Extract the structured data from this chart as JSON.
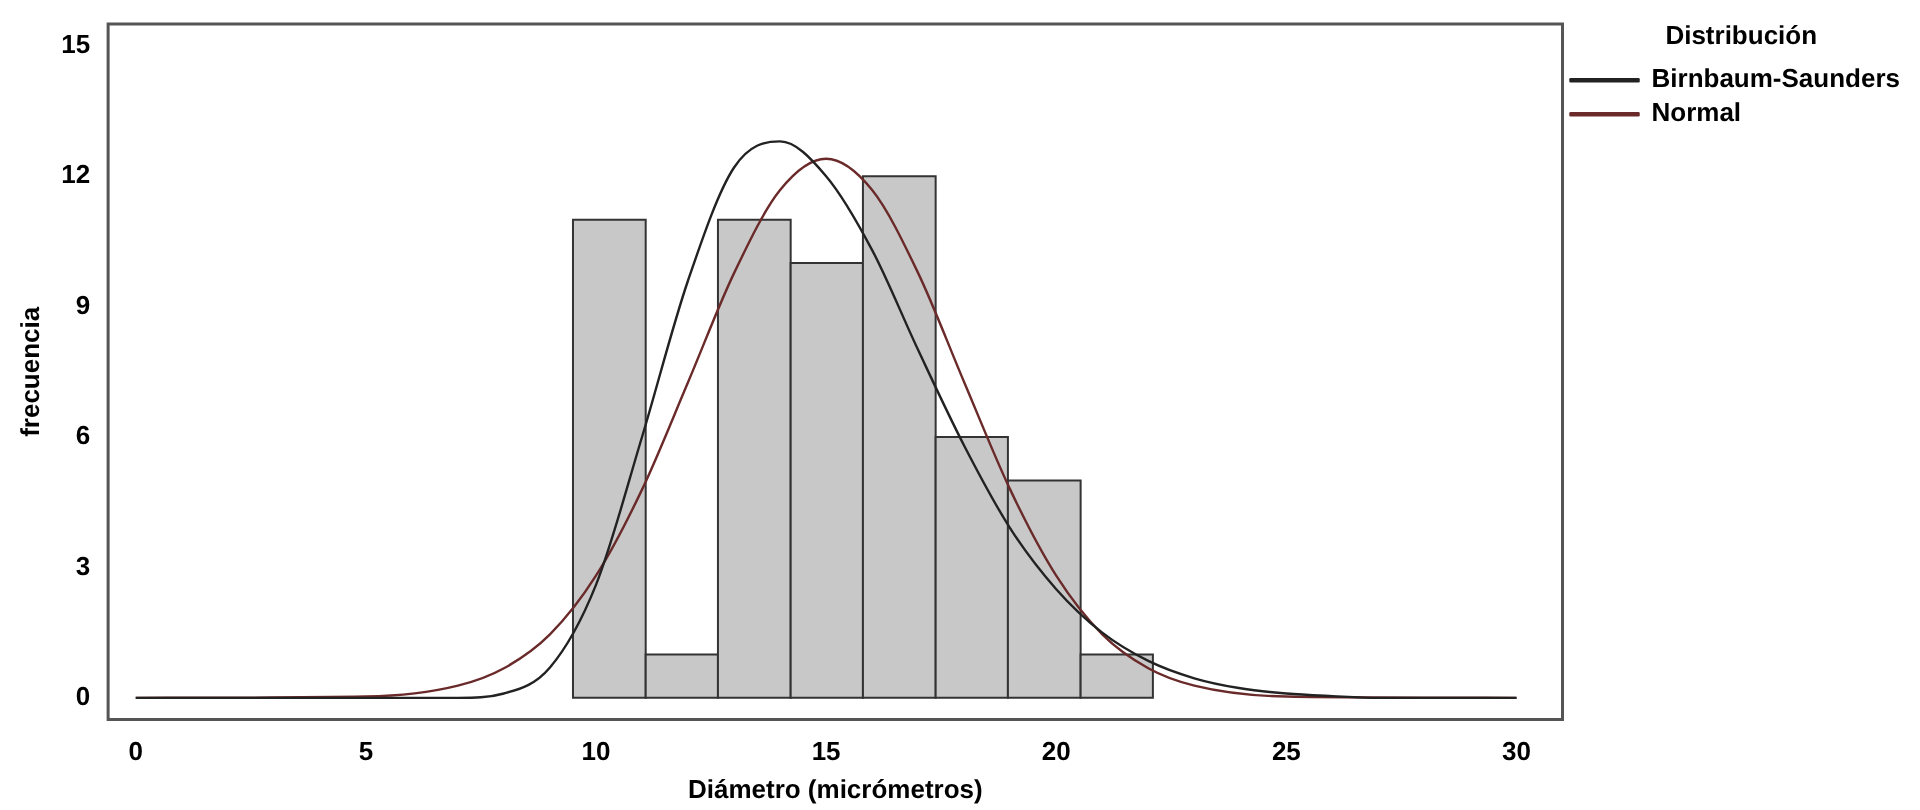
{
  "chart_data": {
    "type": "histogram",
    "xlabel": "Diámetro (micrómetros)",
    "ylabel": "frecuencia",
    "legend_title": "Distribución",
    "legend": "top right",
    "grid": false,
    "xlim": [
      -0.6,
      31
    ],
    "xticks": [
      0,
      5,
      10,
      15,
      20,
      25,
      30
    ],
    "ylim": [
      -0.5,
      15.5
    ],
    "yticks": [
      0,
      3,
      6,
      9,
      12,
      15
    ],
    "series": [
      {
        "color": "#c8c8c8",
        "bins": [
          9.5,
          11.08,
          12.65,
          14.23,
          15.8,
          17.38,
          18.95,
          20.53,
          22.1
        ],
        "values": [
          11,
          1,
          11,
          10,
          12,
          6,
          5,
          1
        ]
      },
      {
        "type": "line",
        "name": "Birnbaum-Saunders",
        "color": "#222222",
        "x": [
          0,
          5,
          7,
          8,
          9,
          10,
          11,
          12,
          13,
          14,
          15,
          16,
          17,
          18,
          19,
          20,
          21,
          22,
          23,
          24,
          25,
          26,
          27,
          30
        ],
        "values": [
          0,
          0,
          0,
          0.1,
          0.7,
          2.6,
          6,
          9.6,
          12.2,
          12.8,
          12,
          10.3,
          8,
          5.8,
          3.9,
          2.5,
          1.5,
          0.85,
          0.45,
          0.22,
          0.1,
          0.04,
          0,
          0
        ]
      },
      {
        "type": "line",
        "name": "Normal",
        "color": "#6b2a2a",
        "x": [
          0,
          5,
          7,
          8,
          9,
          10,
          11,
          12,
          13,
          14,
          15,
          16,
          17,
          18,
          19,
          20,
          21,
          22,
          23,
          25,
          30
        ],
        "values": [
          0,
          0.03,
          0.28,
          0.68,
          1.46,
          2.81,
          4.79,
          7.26,
          9.77,
          11.68,
          12.4,
          11.68,
          9.77,
          7.26,
          4.79,
          2.81,
          1.46,
          0.68,
          0.28,
          0.03,
          0
        ]
      }
    ]
  }
}
